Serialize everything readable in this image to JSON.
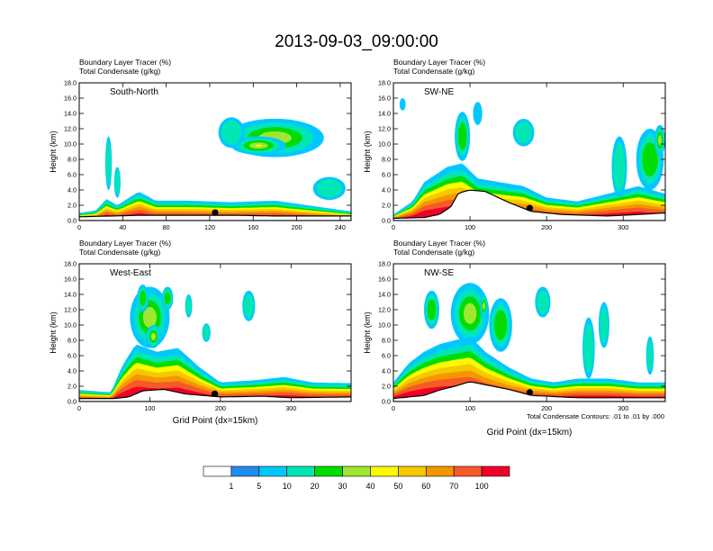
{
  "figure": {
    "title": "2013-09-03_09:00:00",
    "xlabel": "Grid Point (dx=15km)",
    "contour_note": "Total Condensate Contours: .01 to .01 by .000"
  },
  "colorbar": {
    "colors": [
      "#ffffff",
      "#1e8cf0",
      "#00c8ff",
      "#00e6b4",
      "#00dc00",
      "#a0e632",
      "#fafa00",
      "#f5c800",
      "#f59600",
      "#f55a28",
      "#f00028"
    ],
    "labels": [
      "1",
      "5",
      "10",
      "20",
      "30",
      "40",
      "50",
      "60",
      "70",
      "100"
    ]
  },
  "chart_data": [
    {
      "type": "heatmap",
      "name": "South-North",
      "label": "South-North",
      "title_lines": [
        "Boundary Layer Tracer   (%)",
        "Total Condensate   (g/kg)"
      ],
      "ylabel": "Height (km)",
      "ylim": [
        0,
        18
      ],
      "xlim": [
        0,
        250
      ],
      "yticks": [
        "0.0",
        "2.0",
        "4.0",
        "6.0",
        "8.0",
        "10.0",
        "12.0",
        "14.0",
        "16.0",
        "18.0"
      ],
      "xticks": [
        "0",
        "40",
        "80",
        "120",
        "160",
        "200",
        "240"
      ],
      "marker_x": 125,
      "terrain": [
        [
          0,
          0.5
        ],
        [
          30,
          0.6
        ],
        [
          60,
          0.7
        ],
        [
          100,
          0.7
        ],
        [
          140,
          0.7
        ],
        [
          180,
          0.6
        ],
        [
          220,
          0.6
        ],
        [
          250,
          0.6
        ]
      ],
      "layer_top": [
        [
          0,
          1.0
        ],
        [
          15,
          1.3
        ],
        [
          25,
          2.8
        ],
        [
          35,
          2.0
        ],
        [
          55,
          3.8
        ],
        [
          70,
          2.6
        ],
        [
          100,
          2.6
        ],
        [
          140,
          2.4
        ],
        [
          180,
          2.6
        ],
        [
          210,
          2.0
        ],
        [
          235,
          1.5
        ],
        [
          250,
          1.2
        ]
      ],
      "blobs": [
        {
          "x": 180,
          "y": 10.8,
          "rx": 45,
          "ry": 2.5,
          "value": 30
        },
        {
          "x": 165,
          "y": 9.8,
          "rx": 25,
          "ry": 1.2,
          "value": 40
        },
        {
          "x": 230,
          "y": 4.2,
          "rx": 15,
          "ry": 1.5,
          "value": 10
        },
        {
          "x": 140,
          "y": 11.5,
          "rx": 12,
          "ry": 2.0,
          "value": 10
        },
        {
          "x": 27,
          "y": 7.5,
          "rx": 3,
          "ry": 3.5,
          "value": 10
        },
        {
          "x": 35,
          "y": 5.0,
          "rx": 3,
          "ry": 2.0,
          "value": 10
        }
      ]
    },
    {
      "type": "heatmap",
      "name": "SW-NE",
      "label": "SW-NE",
      "title_lines": [
        "Boundary Layer Tracer   (%)",
        "Total Condensate   (g/kg)"
      ],
      "ylabel": "Height (km)",
      "ylim": [
        0,
        18
      ],
      "xlim": [
        0,
        355
      ],
      "yticks": [
        "0.0",
        "2.0",
        "4.0",
        "6.0",
        "8.0",
        "10.0",
        "12.0",
        "14.0",
        "16.0",
        "18.0"
      ],
      "xticks": [
        "0",
        "100",
        "200",
        "300"
      ],
      "marker_x": 178,
      "terrain": [
        [
          0,
          0.3
        ],
        [
          40,
          0.4
        ],
        [
          60,
          0.8
        ],
        [
          75,
          1.8
        ],
        [
          85,
          3.6
        ],
        [
          100,
          4.0
        ],
        [
          120,
          3.8
        ],
        [
          150,
          2.4
        ],
        [
          180,
          1.2
        ],
        [
          220,
          0.8
        ],
        [
          280,
          0.6
        ],
        [
          320,
          0.8
        ],
        [
          355,
          1.0
        ]
      ],
      "layer_top": [
        [
          0,
          0.8
        ],
        [
          25,
          2.5
        ],
        [
          40,
          5.0
        ],
        [
          55,
          6.0
        ],
        [
          70,
          7.0
        ],
        [
          90,
          7.5
        ],
        [
          110,
          5.5
        ],
        [
          140,
          5.0
        ],
        [
          170,
          4.5
        ],
        [
          200,
          3.0
        ],
        [
          240,
          2.5
        ],
        [
          280,
          3.5
        ],
        [
          320,
          4.5
        ],
        [
          355,
          3.5
        ]
      ],
      "blobs": [
        {
          "x": 90,
          "y": 11.0,
          "rx": 10,
          "ry": 3.2,
          "value": 20
        },
        {
          "x": 12,
          "y": 15.2,
          "rx": 4,
          "ry": 0.8,
          "value": 5
        },
        {
          "x": 110,
          "y": 14.0,
          "rx": 6,
          "ry": 1.5,
          "value": 5
        },
        {
          "x": 170,
          "y": 11.5,
          "rx": 14,
          "ry": 1.8,
          "value": 10
        },
        {
          "x": 335,
          "y": 8.0,
          "rx": 18,
          "ry": 4.0,
          "value": 20
        },
        {
          "x": 348,
          "y": 10.5,
          "rx": 7,
          "ry": 2.0,
          "value": 30
        },
        {
          "x": 295,
          "y": 7.0,
          "rx": 10,
          "ry": 4.0,
          "value": 10
        }
      ]
    },
    {
      "type": "heatmap",
      "name": "West-East",
      "label": "West-East",
      "title_lines": [
        "Boundary Layer Tracer   (%)",
        "Total Condensate   (g/kg)"
      ],
      "ylabel": "Height (km)",
      "ylim": [
        0,
        18
      ],
      "xlim": [
        0,
        385
      ],
      "yticks": [
        "0.0",
        "2.0",
        "4.0",
        "6.0",
        "8.0",
        "10.0",
        "12.0",
        "14.0",
        "16.0",
        "18.0"
      ],
      "xticks": [
        "0",
        "100",
        "200",
        "300"
      ],
      "xlabel": "Grid Point (dx=15km)",
      "marker_x": 192,
      "terrain": [
        [
          0,
          0.4
        ],
        [
          50,
          0.4
        ],
        [
          70,
          0.6
        ],
        [
          90,
          1.4
        ],
        [
          120,
          1.6
        ],
        [
          150,
          1.0
        ],
        [
          200,
          0.6
        ],
        [
          260,
          0.7
        ],
        [
          300,
          0.5
        ],
        [
          385,
          0.6
        ]
      ],
      "layer_top": [
        [
          0,
          1.5
        ],
        [
          45,
          1.2
        ],
        [
          60,
          4.5
        ],
        [
          80,
          7.5
        ],
        [
          110,
          6.5
        ],
        [
          140,
          7.0
        ],
        [
          170,
          4.5
        ],
        [
          200,
          2.5
        ],
        [
          250,
          2.8
        ],
        [
          290,
          3.2
        ],
        [
          330,
          2.5
        ],
        [
          385,
          2.4
        ]
      ],
      "blobs": [
        {
          "x": 100,
          "y": 11.0,
          "rx": 28,
          "ry": 4.0,
          "value": 30
        },
        {
          "x": 90,
          "y": 13.5,
          "rx": 8,
          "ry": 1.8,
          "value": 20
        },
        {
          "x": 125,
          "y": 13.5,
          "rx": 8,
          "ry": 1.5,
          "value": 20
        },
        {
          "x": 105,
          "y": 8.5,
          "rx": 10,
          "ry": 1.5,
          "value": 40
        },
        {
          "x": 240,
          "y": 12.5,
          "rx": 9,
          "ry": 2.0,
          "value": 10
        },
        {
          "x": 180,
          "y": 9.0,
          "rx": 6,
          "ry": 1.2,
          "value": 10
        },
        {
          "x": 155,
          "y": 12.5,
          "rx": 5,
          "ry": 1.5,
          "value": 10
        }
      ]
    },
    {
      "type": "heatmap",
      "name": "NW-SE",
      "label": "NW-SE",
      "title_lines": [
        "Boundary Layer Tracer   (%)",
        "Total Condensate   (g/kg)"
      ],
      "ylabel": "Height (km)",
      "ylim": [
        0,
        18
      ],
      "xlim": [
        0,
        355
      ],
      "yticks": [
        "0.0",
        "2.0",
        "4.0",
        "6.0",
        "8.0",
        "10.0",
        "12.0",
        "14.0",
        "16.0",
        "18.0"
      ],
      "xticks": [
        "0",
        "100",
        "200",
        "300"
      ],
      "xlabel": "Grid Point (dx=15km)",
      "marker_x": 178,
      "terrain": [
        [
          0,
          0.4
        ],
        [
          40,
          0.8
        ],
        [
          60,
          1.5
        ],
        [
          80,
          2.0
        ],
        [
          100,
          2.6
        ],
        [
          120,
          2.2
        ],
        [
          150,
          1.6
        ],
        [
          180,
          0.8
        ],
        [
          240,
          0.5
        ],
        [
          300,
          0.5
        ],
        [
          355,
          0.5
        ]
      ],
      "layer_top": [
        [
          0,
          2.5
        ],
        [
          20,
          5.0
        ],
        [
          40,
          6.5
        ],
        [
          60,
          7.5
        ],
        [
          80,
          8.0
        ],
        [
          100,
          8.5
        ],
        [
          120,
          6.5
        ],
        [
          150,
          4.5
        ],
        [
          180,
          3.0
        ],
        [
          210,
          2.5
        ],
        [
          240,
          3.0
        ],
        [
          280,
          3.0
        ],
        [
          320,
          2.5
        ],
        [
          355,
          2.5
        ]
      ],
      "blobs": [
        {
          "x": 100,
          "y": 11.5,
          "rx": 25,
          "ry": 4.0,
          "value": 30
        },
        {
          "x": 140,
          "y": 10.0,
          "rx": 15,
          "ry": 3.5,
          "value": 20
        },
        {
          "x": 50,
          "y": 12.0,
          "rx": 10,
          "ry": 2.5,
          "value": 20
        },
        {
          "x": 195,
          "y": 13.0,
          "rx": 10,
          "ry": 2.0,
          "value": 10
        },
        {
          "x": 255,
          "y": 7.0,
          "rx": 8,
          "ry": 4.0,
          "value": 10
        },
        {
          "x": 275,
          "y": 10.0,
          "rx": 7,
          "ry": 3.0,
          "value": 10
        },
        {
          "x": 335,
          "y": 6.0,
          "rx": 5,
          "ry": 2.5,
          "value": 10
        },
        {
          "x": 118,
          "y": 12.5,
          "rx": 5,
          "ry": 1.5,
          "value": 40
        }
      ]
    }
  ]
}
